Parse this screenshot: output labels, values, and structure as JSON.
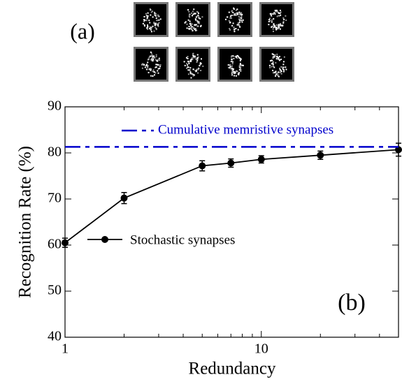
{
  "panel_label_a": "(a)",
  "chart_data": {
    "type": "line",
    "panel_label": "(b)",
    "xlabel": "Redundancy",
    "ylabel": "Recognition Rate (%)",
    "xscale": "log",
    "xlim": [
      1,
      50
    ],
    "ylim": [
      40,
      90
    ],
    "xticks": [
      1,
      10
    ],
    "xminor": [
      2,
      3,
      4,
      5,
      6,
      7,
      8,
      9,
      20,
      30,
      40
    ],
    "yticks": [
      40,
      50,
      60,
      70,
      80,
      90
    ],
    "series": [
      {
        "name": "Stochastic synapses",
        "color": "#000000",
        "marker": "circle",
        "x": [
          1,
          2,
          5,
          7,
          10,
          20,
          50
        ],
        "values": [
          60.5,
          70.2,
          77.2,
          77.8,
          78.6,
          79.5,
          80.7
        ],
        "errors": [
          1.0,
          1.2,
          1.1,
          0.9,
          0.8,
          0.9,
          1.4
        ]
      },
      {
        "name": "Cumulative memristive synapses",
        "color": "#0000cc",
        "dash": "dashdot",
        "x": [
          1,
          50
        ],
        "values": [
          81.3,
          81.3
        ]
      }
    ]
  }
}
